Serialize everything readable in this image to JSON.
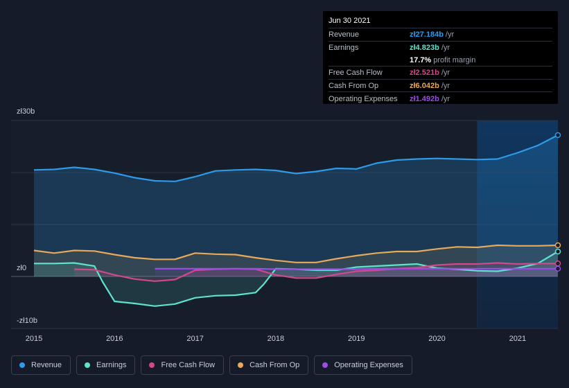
{
  "tooltip": {
    "date": "Jun 30 2021",
    "rows": [
      {
        "label": "Revenue",
        "value": "zł27.184b",
        "unit": "/yr",
        "color": "#2d9be8"
      },
      {
        "label": "Earnings",
        "value": "zł4.823b",
        "unit": "/yr",
        "color": "#5ee3cf"
      },
      {
        "label": "",
        "value": "17.7%",
        "unit": "profit margin",
        "color": "#ffffff"
      },
      {
        "label": "Free Cash Flow",
        "value": "zł2.521b",
        "unit": "/yr",
        "color": "#d2488a"
      },
      {
        "label": "Cash From Op",
        "value": "zł6.042b",
        "unit": "/yr",
        "color": "#e8aa5a"
      },
      {
        "label": "Operating Expenses",
        "value": "zł1.492b",
        "unit": "/yr",
        "color": "#9b4de8"
      }
    ]
  },
  "legend": [
    {
      "label": "Revenue",
      "color": "#2d9be8"
    },
    {
      "label": "Earnings",
      "color": "#5ee3cf"
    },
    {
      "label": "Free Cash Flow",
      "color": "#d2488a"
    },
    {
      "label": "Cash From Op",
      "color": "#e8aa5a"
    },
    {
      "label": "Operating Expenses",
      "color": "#9b4de8"
    }
  ],
  "chart_data": {
    "type": "line",
    "title": "",
    "xlabel": "",
    "ylabel": "",
    "ylim": [
      -10,
      30
    ],
    "xlim": [
      2015.0,
      2021.5
    ],
    "y_tick_labels": [
      {
        "value": 30,
        "label": "zł30b"
      },
      {
        "value": 0,
        "label": "zł0"
      },
      {
        "value": -10,
        "label": "-zł10b"
      }
    ],
    "x_tick_labels": [
      "2015",
      "2016",
      "2017",
      "2018",
      "2019",
      "2020",
      "2021"
    ],
    "x_tick_values": [
      2015,
      2016,
      2017,
      2018,
      2019,
      2020,
      2021
    ],
    "highlight_from": 2020.5,
    "series": [
      {
        "name": "Revenue",
        "color": "#2d9be8",
        "x": [
          2015.0,
          2015.25,
          2015.5,
          2015.75,
          2016.0,
          2016.25,
          2016.5,
          2016.75,
          2017.0,
          2017.25,
          2017.5,
          2017.75,
          2018.0,
          2018.25,
          2018.5,
          2018.75,
          2019.0,
          2019.25,
          2019.5,
          2019.75,
          2020.0,
          2020.25,
          2020.5,
          2020.75,
          2021.0,
          2021.25,
          2021.5
        ],
        "y": [
          20.5,
          20.6,
          21.0,
          20.6,
          19.9,
          19.0,
          18.4,
          18.3,
          19.2,
          20.3,
          20.5,
          20.6,
          20.4,
          19.8,
          20.2,
          20.8,
          20.7,
          21.8,
          22.4,
          22.6,
          22.7,
          22.6,
          22.5,
          22.6,
          23.8,
          25.2,
          27.2
        ]
      },
      {
        "name": "Earnings",
        "color": "#5ee3cf",
        "x": [
          2015.0,
          2015.25,
          2015.5,
          2015.75,
          2015.85,
          2016.0,
          2016.25,
          2016.5,
          2016.75,
          2017.0,
          2017.25,
          2017.5,
          2017.75,
          2017.85,
          2018.0,
          2018.25,
          2018.5,
          2018.75,
          2019.0,
          2019.25,
          2019.5,
          2019.75,
          2020.0,
          2020.25,
          2020.5,
          2020.75,
          2021.0,
          2021.25,
          2021.5
        ],
        "y": [
          2.5,
          2.5,
          2.6,
          2.0,
          -1.0,
          -4.8,
          -5.2,
          -5.7,
          -5.3,
          -4.1,
          -3.7,
          -3.6,
          -3.1,
          -1.5,
          1.5,
          1.4,
          1.2,
          1.2,
          1.8,
          2.0,
          2.2,
          2.4,
          1.6,
          1.4,
          1.1,
          1.0,
          1.6,
          2.5,
          4.8
        ]
      },
      {
        "name": "Free Cash Flow",
        "color": "#d2488a",
        "x": [
          2015.5,
          2015.75,
          2016.0,
          2016.25,
          2016.5,
          2016.75,
          2017.0,
          2017.25,
          2017.5,
          2017.75,
          2018.0,
          2018.25,
          2018.5,
          2018.75,
          2019.0,
          2019.25,
          2019.5,
          2019.75,
          2020.0,
          2020.25,
          2020.5,
          2020.75,
          2021.0,
          2021.25,
          2021.5
        ],
        "y": [
          1.4,
          1.3,
          0.3,
          -0.5,
          -0.9,
          -0.6,
          1.2,
          1.4,
          1.5,
          1.4,
          0.3,
          -0.3,
          -0.3,
          0.4,
          1.0,
          1.2,
          1.5,
          1.7,
          2.2,
          2.4,
          2.4,
          2.6,
          2.4,
          2.5,
          2.5
        ]
      },
      {
        "name": "Cash From Op",
        "color": "#e8aa5a",
        "x": [
          2015.0,
          2015.25,
          2015.5,
          2015.75,
          2016.0,
          2016.25,
          2016.5,
          2016.75,
          2017.0,
          2017.25,
          2017.5,
          2017.75,
          2018.0,
          2018.25,
          2018.5,
          2018.75,
          2019.0,
          2019.25,
          2019.5,
          2019.75,
          2020.0,
          2020.25,
          2020.5,
          2020.75,
          2021.0,
          2021.25,
          2021.5
        ],
        "y": [
          5.0,
          4.5,
          5.0,
          4.9,
          4.2,
          3.6,
          3.3,
          3.3,
          4.5,
          4.3,
          4.2,
          3.6,
          3.1,
          2.7,
          2.7,
          3.4,
          4.0,
          4.5,
          4.8,
          4.8,
          5.3,
          5.7,
          5.6,
          6.0,
          5.9,
          5.9,
          6.0
        ]
      },
      {
        "name": "Operating Expenses",
        "color": "#9b4de8",
        "x": [
          2016.5,
          2016.75,
          2017.0,
          2017.25,
          2017.5,
          2017.75,
          2018.0,
          2018.25,
          2018.5,
          2018.75,
          2019.0,
          2019.25,
          2019.5,
          2019.75,
          2020.0,
          2020.25,
          2020.5,
          2020.75,
          2021.0,
          2021.25,
          2021.5
        ],
        "y": [
          1.5,
          1.5,
          1.5,
          1.5,
          1.5,
          1.5,
          1.4,
          1.4,
          1.4,
          1.4,
          1.4,
          1.5,
          1.5,
          1.5,
          1.5,
          1.5,
          1.5,
          1.5,
          1.5,
          1.5,
          1.5
        ]
      }
    ]
  }
}
